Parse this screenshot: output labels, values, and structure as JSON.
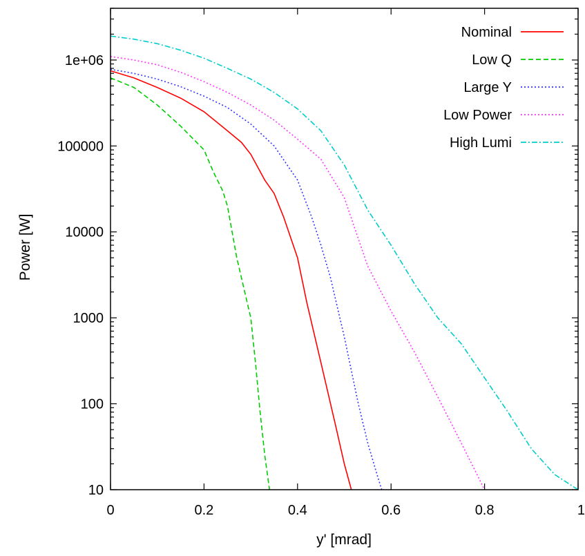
{
  "chart_data": {
    "type": "line",
    "xlabel": "y' [mrad]",
    "ylabel": "Power [W]",
    "xlim": [
      0,
      1
    ],
    "ylim": [
      10,
      4000000
    ],
    "yscale": "log",
    "grid": false,
    "legend_position": "top-right",
    "x_ticks": [
      0,
      0.2,
      0.4,
      0.6,
      0.8,
      1
    ],
    "x_tick_labels": [
      "0",
      "0.2",
      "0.4",
      "0.6",
      "0.8",
      "1"
    ],
    "y_ticks": [
      10,
      100,
      1000,
      10000,
      100000,
      1000000
    ],
    "y_tick_labels": [
      "10",
      "100",
      "1000",
      "10000",
      "100000",
      "1e+06"
    ],
    "series": [
      {
        "name": "Nominal",
        "color": "#ff0000",
        "dash": "solid",
        "x": [
          0,
          0.05,
          0.1,
          0.15,
          0.2,
          0.25,
          0.28,
          0.3,
          0.33,
          0.35,
          0.37,
          0.4,
          0.42,
          0.45,
          0.48,
          0.5,
          0.515
        ],
        "y": [
          750000,
          620000,
          480000,
          360000,
          250000,
          150000,
          110000,
          80000,
          40000,
          28000,
          15000,
          5000,
          1500,
          300,
          60,
          20,
          10
        ]
      },
      {
        "name": "Low Q",
        "color": "#00cc00",
        "dash": "dashed",
        "x": [
          0,
          0.05,
          0.1,
          0.15,
          0.2,
          0.22,
          0.24,
          0.25,
          0.27,
          0.3,
          0.31,
          0.32,
          0.33,
          0.34
        ],
        "y": [
          620000,
          480000,
          300000,
          170000,
          90000,
          50000,
          30000,
          20000,
          5000,
          1000,
          300,
          80,
          25,
          10
        ]
      },
      {
        "name": "Large Y",
        "color": "#3333ff",
        "dash": "dotted",
        "x": [
          0,
          0.05,
          0.1,
          0.15,
          0.2,
          0.25,
          0.3,
          0.35,
          0.4,
          0.43,
          0.45,
          0.47,
          0.5,
          0.53,
          0.55,
          0.57,
          0.58
        ],
        "y": [
          780000,
          700000,
          600000,
          490000,
          380000,
          280000,
          180000,
          100000,
          40000,
          15000,
          7000,
          3000,
          600,
          100,
          35,
          15,
          10
        ]
      },
      {
        "name": "Low Power",
        "color": "#ff33ff",
        "dash": "dotted",
        "x": [
          0,
          0.05,
          0.1,
          0.15,
          0.2,
          0.25,
          0.3,
          0.35,
          0.4,
          0.45,
          0.5,
          0.55,
          0.6,
          0.65,
          0.7,
          0.75,
          0.8
        ],
        "y": [
          1100000,
          1000000,
          880000,
          720000,
          560000,
          420000,
          300000,
          200000,
          120000,
          70000,
          25000,
          4000,
          1200,
          400,
          120,
          35,
          10
        ]
      },
      {
        "name": "High Lumi",
        "color": "#00cccc",
        "dash": "dashdot",
        "x": [
          0,
          0.05,
          0.1,
          0.15,
          0.2,
          0.25,
          0.3,
          0.35,
          0.4,
          0.45,
          0.5,
          0.55,
          0.6,
          0.65,
          0.7,
          0.75,
          0.8,
          0.85,
          0.9,
          0.95,
          1.0
        ],
        "y": [
          1900000,
          1750000,
          1550000,
          1300000,
          1050000,
          800000,
          600000,
          420000,
          270000,
          150000,
          60000,
          18000,
          7000,
          2500,
          1000,
          500,
          200,
          80,
          30,
          15,
          10
        ]
      }
    ]
  }
}
